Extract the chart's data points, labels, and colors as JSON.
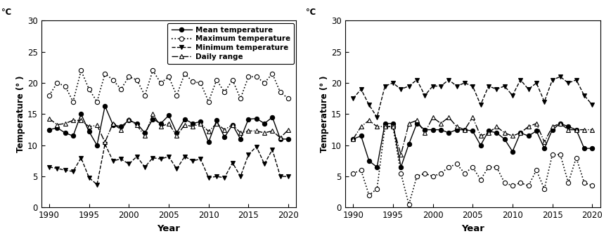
{
  "years": [
    1990,
    1991,
    1992,
    1993,
    1994,
    1995,
    1996,
    1997,
    1998,
    1999,
    2000,
    2001,
    2002,
    2003,
    2004,
    2005,
    2006,
    2007,
    2008,
    2009,
    2010,
    2011,
    2012,
    2013,
    2014,
    2015,
    2016,
    2017,
    2018,
    2019,
    2020
  ],
  "left": {
    "mean": [
      12.5,
      12.8,
      12.0,
      11.5,
      15.0,
      12.2,
      10.0,
      16.3,
      13.3,
      13.0,
      14.0,
      13.5,
      12.0,
      14.2,
      13.5,
      14.8,
      12.0,
      14.2,
      13.5,
      13.8,
      10.5,
      14.0,
      11.3,
      13.3,
      11.0,
      14.2,
      14.3,
      13.5,
      14.5,
      11.0,
      11.0
    ],
    "maximum": [
      18.0,
      20.0,
      19.5,
      17.0,
      22.0,
      19.0,
      17.0,
      21.5,
      20.5,
      19.0,
      21.0,
      20.5,
      18.0,
      22.0,
      20.0,
      21.0,
      18.0,
      21.5,
      20.2,
      20.0,
      17.0,
      20.5,
      18.5,
      20.5,
      17.5,
      21.0,
      21.0,
      20.0,
      21.5,
      18.5,
      17.5
    ],
    "minimum": [
      6.5,
      6.3,
      6.0,
      5.8,
      8.0,
      4.8,
      3.7,
      10.2,
      7.5,
      7.8,
      7.0,
      8.2,
      6.5,
      8.0,
      7.8,
      8.2,
      6.2,
      8.2,
      7.5,
      7.8,
      4.8,
      5.0,
      4.8,
      7.2,
      5.0,
      8.5,
      9.8,
      7.0,
      9.3,
      5.0,
      5.0
    ],
    "daily_range": [
      14.3,
      13.3,
      13.5,
      14.0,
      14.0,
      13.0,
      13.2,
      10.5,
      13.5,
      12.5,
      14.2,
      13.2,
      11.5,
      15.0,
      13.0,
      13.5,
      11.5,
      13.3,
      13.0,
      13.5,
      12.2,
      13.5,
      12.5,
      13.3,
      12.0,
      12.3,
      12.3,
      12.0,
      12.3,
      11.2,
      12.5
    ]
  },
  "right": {
    "mean": [
      11.0,
      11.5,
      7.5,
      6.5,
      13.5,
      13.5,
      6.5,
      10.2,
      13.5,
      12.5,
      12.5,
      12.5,
      12.0,
      12.5,
      12.5,
      12.3,
      10.0,
      12.3,
      12.0,
      11.0,
      9.0,
      12.0,
      11.5,
      12.3,
      9.5,
      12.5,
      13.5,
      13.0,
      12.5,
      9.5,
      9.5
    ],
    "maximum": [
      5.5,
      6.0,
      2.0,
      3.0,
      13.0,
      13.0,
      5.5,
      0.5,
      5.0,
      5.5,
      5.0,
      5.5,
      6.5,
      7.0,
      5.5,
      6.5,
      4.5,
      6.5,
      6.5,
      4.0,
      3.5,
      4.0,
      3.5,
      6.0,
      3.0,
      8.5,
      8.5,
      4.0,
      8.0,
      4.0,
      3.5
    ],
    "minimum": [
      17.5,
      19.0,
      16.5,
      14.5,
      19.5,
      20.0,
      19.0,
      19.5,
      20.5,
      18.0,
      19.5,
      19.5,
      20.5,
      19.5,
      20.0,
      19.5,
      16.5,
      19.5,
      19.0,
      19.5,
      18.0,
      20.5,
      19.0,
      20.0,
      17.0,
      20.5,
      21.0,
      20.0,
      20.5,
      18.0,
      16.5
    ],
    "daily_range": [
      11.0,
      13.0,
      14.0,
      13.0,
      13.0,
      13.0,
      8.5,
      13.5,
      14.0,
      12.0,
      14.5,
      13.5,
      14.5,
      13.0,
      12.5,
      14.5,
      11.5,
      12.0,
      13.0,
      12.0,
      11.5,
      12.0,
      13.0,
      13.5,
      10.5,
      13.0,
      13.5,
      12.5,
      12.5,
      12.5,
      12.5
    ]
  },
  "ylim": [
    0,
    30
  ],
  "yticks": [
    0,
    5,
    10,
    15,
    20,
    25,
    30
  ],
  "xlim": [
    1989,
    2021
  ],
  "xticks": [
    1990,
    1995,
    2000,
    2005,
    2010,
    2015,
    2020
  ],
  "legend_labels": [
    "Mean temperature",
    "Maximum temperature",
    "Minimum temperature",
    "Daily range"
  ],
  "ylabel": "Temperature (° )",
  "xlabel": "Year"
}
